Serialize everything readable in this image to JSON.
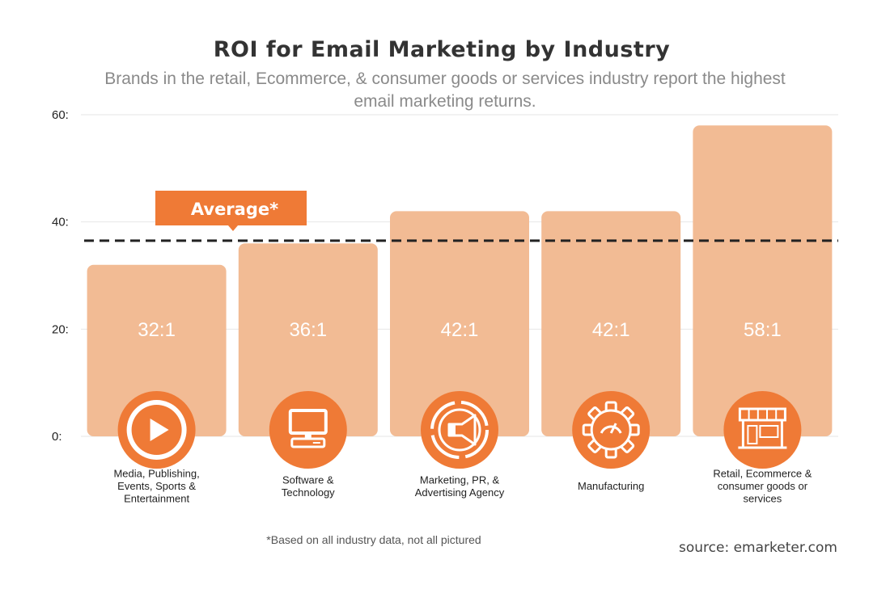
{
  "colors": {
    "bar": "#f2bb94",
    "accent": "#ef7a36",
    "grid": "#e6e6e6",
    "average_line": "#222222"
  },
  "chart_data": {
    "type": "bar",
    "title": "ROI for Email Marketing by Industry",
    "subtitle_lines": [
      "Brands in the retail, Ecommerce, & consumer goods or services industry report the highest",
      "email marketing returns."
    ],
    "xlabel": "",
    "ylabel": "",
    "ylim": [
      0,
      60
    ],
    "yticks": [
      0,
      20,
      40,
      60
    ],
    "ytick_labels": [
      "0:",
      "20:",
      "40:",
      "60:"
    ],
    "grid": true,
    "categories": [
      [
        "Media, Publishing,",
        "Events, Sports &",
        "Entertainment"
      ],
      [
        "Software &",
        "Technology"
      ],
      [
        "Marketing, PR, &",
        "Advertising Agency"
      ],
      [
        "Manufacturing"
      ],
      [
        "Retail, Ecommerce &",
        "consumer goods or",
        "services"
      ]
    ],
    "values": [
      32,
      36,
      42,
      42,
      58
    ],
    "value_labels": [
      "32:1",
      "36:1",
      "42:1",
      "42:1",
      "58:1"
    ],
    "icons": [
      "play-icon",
      "computer-icon",
      "megaphone-icon",
      "gear-icon",
      "storefront-icon"
    ],
    "average": {
      "value": 36.5,
      "label": "Average*"
    },
    "footnote": "*Based on all industry data, not all pictured",
    "source": "source: emarketer.com"
  }
}
